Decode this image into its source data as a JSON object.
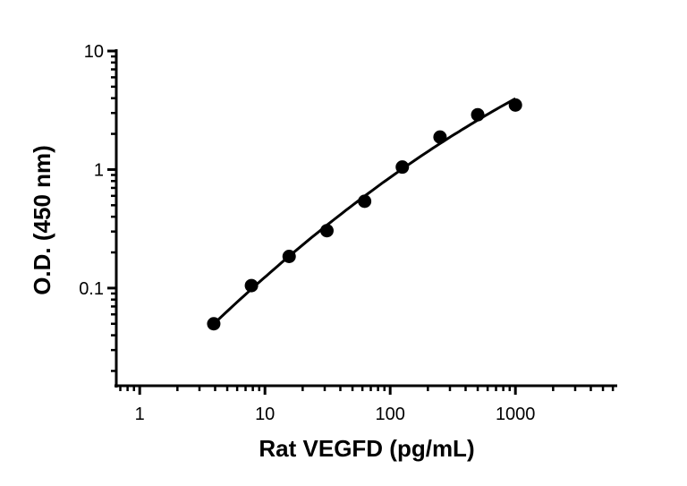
{
  "chart_data": {
    "type": "scatter",
    "title": "",
    "xlabel": "Rat VEGFD (pg/mL)",
    "ylabel": "O.D. (450 nm)",
    "x_scale": "log",
    "y_scale": "log",
    "xlim": [
      0.65,
      6500
    ],
    "ylim": [
      0.015,
      10
    ],
    "x_ticks": [
      1,
      10,
      100,
      1000
    ],
    "x_tick_labels": [
      "1",
      "10",
      "100",
      "1000"
    ],
    "y_ticks": [
      0.1,
      1,
      10
    ],
    "y_tick_labels": [
      "0.1",
      "1",
      "10"
    ],
    "grid": false,
    "fit_curve": true,
    "series": [
      {
        "x": [
          3.9,
          7.8,
          15.6,
          31.25,
          62.5,
          125,
          250,
          500,
          1000
        ],
        "y": [
          0.05,
          0.105,
          0.185,
          0.305,
          0.54,
          1.05,
          1.88,
          2.9,
          3.5
        ]
      }
    ],
    "colors": {
      "marker": "#000000",
      "line": "#000000"
    }
  }
}
